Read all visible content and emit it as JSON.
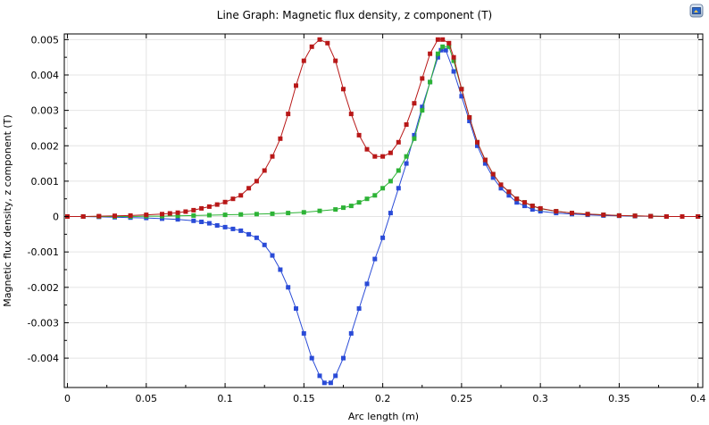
{
  "chart_data": {
    "type": "line",
    "title": "Line Graph: Magnetic flux density, z component (T)",
    "xlabel": "Arc length (m)",
    "ylabel": "Magnetic flux density, z component (T)",
    "xlim": [
      -0.002,
      0.403
    ],
    "ylim": [
      -0.00483,
      0.00516
    ],
    "x_ticks": [
      0,
      0.05,
      0.1,
      0.15,
      0.2,
      0.25,
      0.3,
      0.35,
      0.4
    ],
    "x_tick_labels": [
      "0",
      "0.05",
      "0.1",
      "0.15",
      "0.2",
      "0.25",
      "0.3",
      "0.35",
      "0.4"
    ],
    "y_ticks": [
      -0.004,
      -0.003,
      -0.002,
      -0.001,
      0,
      0.001,
      0.002,
      0.003,
      0.004,
      0.005
    ],
    "y_tick_labels": [
      "-0.004",
      "-0.003",
      "-0.002",
      "-0.001",
      "0",
      "0.001",
      "0.002",
      "0.003",
      "0.004",
      "0.005"
    ],
    "grid": true,
    "legend": "none",
    "series": [
      {
        "color": "#2a4bd7",
        "x": [
          0,
          0.01,
          0.02,
          0.03,
          0.04,
          0.05,
          0.06,
          0.07,
          0.08,
          0.085,
          0.09,
          0.095,
          0.1,
          0.105,
          0.11,
          0.115,
          0.12,
          0.125,
          0.13,
          0.135,
          0.14,
          0.145,
          0.15,
          0.155,
          0.16,
          0.163,
          0.167,
          0.17,
          0.175,
          0.18,
          0.185,
          0.19,
          0.195,
          0.2,
          0.205,
          0.21,
          0.215,
          0.22,
          0.225,
          0.23,
          0.235,
          0.237,
          0.24,
          0.245,
          0.25,
          0.255,
          0.26,
          0.265,
          0.27,
          0.275,
          0.28,
          0.285,
          0.29,
          0.295,
          0.3,
          0.31,
          0.32,
          0.33,
          0.34,
          0.35,
          0.36,
          0.37,
          0.38,
          0.39,
          0.4
        ],
        "y": [
          0,
          0,
          -1e-05,
          -2e-05,
          -3e-05,
          -4e-05,
          -6e-05,
          -8e-05,
          -0.00012,
          -0.00015,
          -0.00019,
          -0.00025,
          -0.0003,
          -0.00035,
          -0.0004,
          -0.0005,
          -0.0006,
          -0.0008,
          -0.0011,
          -0.0015,
          -0.002,
          -0.0026,
          -0.0033,
          -0.004,
          -0.0045,
          -0.0047,
          -0.0047,
          -0.0045,
          -0.004,
          -0.0033,
          -0.0026,
          -0.0019,
          -0.0012,
          -0.0006,
          0.0001,
          0.0008,
          0.0015,
          0.0023,
          0.0031,
          0.0038,
          0.0045,
          0.0047,
          0.0047,
          0.0041,
          0.0034,
          0.0027,
          0.002,
          0.0015,
          0.0011,
          0.0008,
          0.0006,
          0.0004,
          0.0003,
          0.0002,
          0.00015,
          0.0001,
          7e-05,
          5e-05,
          3e-05,
          2e-05,
          1e-05,
          1e-05,
          0,
          0,
          0
        ]
      },
      {
        "color": "#2db336",
        "x": [
          0,
          0.01,
          0.02,
          0.03,
          0.04,
          0.05,
          0.06,
          0.07,
          0.08,
          0.09,
          0.1,
          0.11,
          0.12,
          0.13,
          0.14,
          0.15,
          0.16,
          0.17,
          0.175,
          0.18,
          0.185,
          0.19,
          0.195,
          0.2,
          0.205,
          0.21,
          0.215,
          0.22,
          0.225,
          0.23,
          0.235,
          0.238,
          0.242,
          0.245,
          0.25,
          0.255,
          0.26,
          0.265,
          0.27,
          0.275,
          0.28,
          0.285,
          0.29,
          0.295,
          0.3,
          0.31,
          0.32,
          0.33,
          0.34,
          0.35,
          0.36,
          0.37,
          0.38,
          0.39,
          0.4
        ],
        "y": [
          0,
          0,
          0,
          0,
          0,
          1e-05,
          1e-05,
          2e-05,
          3e-05,
          4e-05,
          5e-05,
          6e-05,
          7e-05,
          8e-05,
          0.0001,
          0.00012,
          0.00016,
          0.0002,
          0.00025,
          0.0003,
          0.0004,
          0.0005,
          0.0006,
          0.0008,
          0.001,
          0.0013,
          0.0017,
          0.0022,
          0.003,
          0.0038,
          0.0046,
          0.0048,
          0.0048,
          0.0044,
          0.0036,
          0.0028,
          0.0021,
          0.0016,
          0.0012,
          0.0009,
          0.0007,
          0.0005,
          0.0004,
          0.0003,
          0.00022,
          0.00015,
          0.0001,
          7e-05,
          5e-05,
          3e-05,
          2e-05,
          1e-05,
          0,
          0,
          0
        ]
      },
      {
        "color": "#b81818",
        "x": [
          0,
          0.01,
          0.02,
          0.03,
          0.04,
          0.05,
          0.06,
          0.065,
          0.07,
          0.075,
          0.08,
          0.085,
          0.09,
          0.095,
          0.1,
          0.105,
          0.11,
          0.115,
          0.12,
          0.125,
          0.13,
          0.135,
          0.14,
          0.145,
          0.15,
          0.155,
          0.16,
          0.165,
          0.17,
          0.175,
          0.18,
          0.185,
          0.19,
          0.195,
          0.2,
          0.205,
          0.21,
          0.215,
          0.22,
          0.225,
          0.23,
          0.235,
          0.238,
          0.242,
          0.245,
          0.25,
          0.255,
          0.26,
          0.265,
          0.27,
          0.275,
          0.28,
          0.285,
          0.29,
          0.295,
          0.3,
          0.31,
          0.32,
          0.33,
          0.34,
          0.35,
          0.36,
          0.37,
          0.38,
          0.39,
          0.4
        ],
        "y": [
          0,
          0,
          1e-05,
          2e-05,
          3e-05,
          5e-05,
          7e-05,
          9e-05,
          0.00011,
          0.00014,
          0.00018,
          0.00023,
          0.00028,
          0.00034,
          0.00041,
          0.0005,
          0.0006,
          0.0008,
          0.001,
          0.0013,
          0.0017,
          0.0022,
          0.0029,
          0.0037,
          0.0044,
          0.0048,
          0.005,
          0.0049,
          0.0044,
          0.0036,
          0.0029,
          0.0023,
          0.0019,
          0.0017,
          0.0017,
          0.0018,
          0.0021,
          0.0026,
          0.0032,
          0.0039,
          0.0046,
          0.005,
          0.005,
          0.0049,
          0.0045,
          0.0036,
          0.0028,
          0.0021,
          0.0016,
          0.0012,
          0.0009,
          0.0007,
          0.0005,
          0.0004,
          0.0003,
          0.00023,
          0.00015,
          0.0001,
          7e-05,
          5e-05,
          3e-05,
          2e-05,
          1e-05,
          0,
          0,
          0
        ]
      }
    ]
  }
}
